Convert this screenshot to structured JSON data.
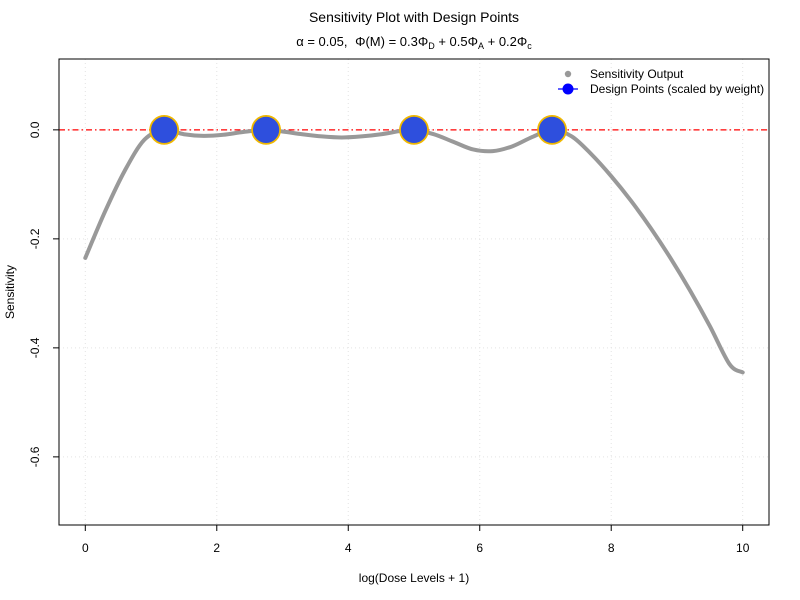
{
  "chart_data": {
    "type": "line",
    "title": "Sensitivity Plot with Design Points",
    "subtitle_parts": {
      "alpha": "α = 0.05,",
      "phi_m": "Φ(M) = 0.3Φ",
      "sub_d": "D",
      "plus1": " + 0.5Φ",
      "sub_a": "A",
      "plus2": " + 0.2Φ",
      "sub_c": "c"
    },
    "xlabel": "log(Dose Levels + 1)",
    "ylabel": "Sensitivity",
    "xlim": [
      -0.4,
      10.4
    ],
    "ylim": [
      -0.725,
      0.13
    ],
    "x_ticks": [
      0,
      2,
      4,
      6,
      8,
      10
    ],
    "x_tick_labels": [
      "0",
      "2",
      "4",
      "6",
      "8",
      "10"
    ],
    "y_ticks": [
      0.0,
      -0.2,
      -0.4,
      -0.6
    ],
    "y_tick_labels": [
      "0.0",
      "-0.2",
      "-0.4",
      "-0.6"
    ],
    "grid": true,
    "reference_line": {
      "y": 0,
      "color": "#ff0000",
      "style": "dot-dash"
    },
    "legend": {
      "position": "top-right",
      "entries": [
        {
          "label": "Sensitivity Output",
          "color": "#999999"
        },
        {
          "label": "Design Points (scaled by weight)",
          "color": "#0000ff"
        }
      ]
    },
    "series": [
      {
        "name": "Sensitivity Output",
        "color": "#999999",
        "x": [
          0,
          0.3,
          0.6,
          0.9,
          1.2,
          1.5,
          1.8,
          2.1,
          2.4,
          2.75,
          3.0,
          3.3,
          3.6,
          3.9,
          4.2,
          4.5,
          4.8,
          5.0,
          5.3,
          5.6,
          5.9,
          6.2,
          6.5,
          6.8,
          7.1,
          7.4,
          7.7,
          8.0,
          8.3,
          8.6,
          8.9,
          9.2,
          9.5,
          9.8,
          10.0
        ],
        "y": [
          -0.235,
          -0.15,
          -0.075,
          -0.018,
          0.0,
          -0.008,
          -0.011,
          -0.009,
          -0.004,
          0.0,
          -0.003,
          -0.008,
          -0.012,
          -0.014,
          -0.012,
          -0.008,
          -0.002,
          0.0,
          -0.008,
          -0.022,
          -0.036,
          -0.039,
          -0.03,
          -0.013,
          0.0,
          -0.012,
          -0.045,
          -0.085,
          -0.13,
          -0.18,
          -0.235,
          -0.295,
          -0.36,
          -0.43,
          -0.445
        ]
      },
      {
        "name": "Design Points (scaled by weight)",
        "color": "#2e4fdd",
        "border_color": "#f0b800",
        "points": [
          {
            "x": 1.2,
            "y": 0.0
          },
          {
            "x": 2.75,
            "y": 0.0
          },
          {
            "x": 5.0,
            "y": 0.0
          },
          {
            "x": 7.1,
            "y": 0.0
          }
        ]
      }
    ]
  }
}
